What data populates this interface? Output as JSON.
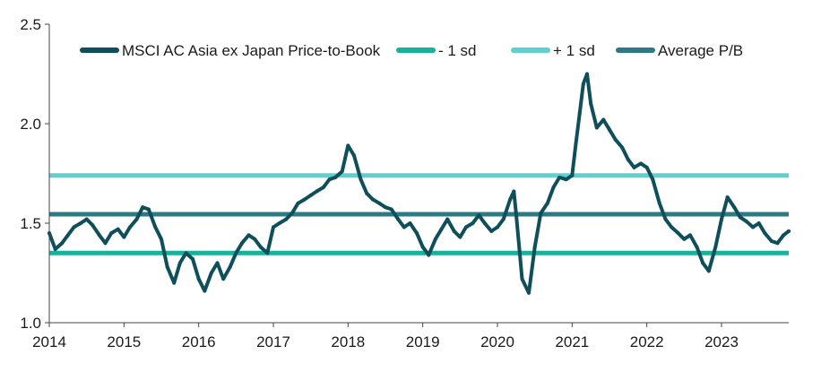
{
  "chart_data": {
    "type": "line",
    "title": "",
    "xlabel": "",
    "ylabel": "",
    "xlim": [
      2014.0,
      2023.9
    ],
    "ylim": [
      1.0,
      2.5
    ],
    "x_ticks": [
      2014,
      2015,
      2016,
      2017,
      2018,
      2019,
      2020,
      2021,
      2022,
      2023
    ],
    "x_tick_labels": [
      "2014",
      "2015",
      "2016",
      "2017",
      "2018",
      "2019",
      "2020",
      "2021",
      "2022",
      "2023"
    ],
    "y_ticks": [
      1.0,
      1.5,
      2.0,
      2.5
    ],
    "y_tick_labels": [
      "1.0",
      "1.5",
      "2.0",
      "2.5"
    ],
    "grid": false,
    "legend_position": "top",
    "series": [
      {
        "name": "MSCI AC Asia ex Japan Price-to-Book",
        "color": "#0e4f5a",
        "x": [
          2014.0,
          2014.08,
          2014.17,
          2014.25,
          2014.33,
          2014.42,
          2014.5,
          2014.58,
          2014.67,
          2014.75,
          2014.83,
          2014.92,
          2015.0,
          2015.08,
          2015.17,
          2015.25,
          2015.33,
          2015.42,
          2015.5,
          2015.58,
          2015.67,
          2015.75,
          2015.83,
          2015.92,
          2016.0,
          2016.08,
          2016.17,
          2016.25,
          2016.33,
          2016.42,
          2016.5,
          2016.58,
          2016.67,
          2016.75,
          2016.83,
          2016.92,
          2017.0,
          2017.08,
          2017.17,
          2017.25,
          2017.33,
          2017.42,
          2017.5,
          2017.58,
          2017.67,
          2017.75,
          2017.83,
          2017.92,
          2018.0,
          2018.08,
          2018.17,
          2018.25,
          2018.33,
          2018.42,
          2018.5,
          2018.58,
          2018.67,
          2018.75,
          2018.83,
          2018.92,
          2019.0,
          2019.08,
          2019.17,
          2019.25,
          2019.33,
          2019.42,
          2019.5,
          2019.58,
          2019.67,
          2019.75,
          2019.83,
          2019.92,
          2020.0,
          2020.08,
          2020.17,
          2020.22,
          2020.25,
          2020.33,
          2020.42,
          2020.5,
          2020.58,
          2020.67,
          2020.75,
          2020.83,
          2020.92,
          2021.0,
          2021.05,
          2021.1,
          2021.15,
          2021.2,
          2021.25,
          2021.33,
          2021.42,
          2021.5,
          2021.58,
          2021.67,
          2021.75,
          2021.83,
          2021.92,
          2022.0,
          2022.08,
          2022.17,
          2022.25,
          2022.33,
          2022.42,
          2022.5,
          2022.58,
          2022.67,
          2022.75,
          2022.83,
          2022.92,
          2023.0,
          2023.08,
          2023.17,
          2023.25,
          2023.33,
          2023.42,
          2023.5,
          2023.58,
          2023.67,
          2023.75,
          2023.83,
          2023.9
        ],
        "values": [
          1.45,
          1.37,
          1.4,
          1.44,
          1.48,
          1.5,
          1.52,
          1.49,
          1.44,
          1.4,
          1.45,
          1.47,
          1.43,
          1.48,
          1.52,
          1.58,
          1.57,
          1.48,
          1.42,
          1.28,
          1.2,
          1.3,
          1.35,
          1.32,
          1.22,
          1.16,
          1.25,
          1.3,
          1.22,
          1.28,
          1.35,
          1.4,
          1.44,
          1.42,
          1.38,
          1.35,
          1.48,
          1.5,
          1.52,
          1.55,
          1.6,
          1.62,
          1.64,
          1.66,
          1.68,
          1.72,
          1.73,
          1.76,
          1.89,
          1.84,
          1.72,
          1.65,
          1.62,
          1.6,
          1.58,
          1.57,
          1.52,
          1.48,
          1.5,
          1.45,
          1.38,
          1.34,
          1.42,
          1.47,
          1.52,
          1.46,
          1.43,
          1.48,
          1.5,
          1.54,
          1.5,
          1.46,
          1.48,
          1.52,
          1.62,
          1.66,
          1.55,
          1.22,
          1.15,
          1.38,
          1.55,
          1.6,
          1.68,
          1.73,
          1.72,
          1.74,
          1.9,
          2.05,
          2.2,
          2.25,
          2.1,
          1.98,
          2.02,
          1.97,
          1.92,
          1.88,
          1.82,
          1.78,
          1.8,
          1.78,
          1.72,
          1.6,
          1.52,
          1.48,
          1.45,
          1.42,
          1.44,
          1.38,
          1.3,
          1.26,
          1.38,
          1.52,
          1.63,
          1.58,
          1.53,
          1.51,
          1.48,
          1.5,
          1.45,
          1.41,
          1.4,
          1.44,
          1.46
        ]
      },
      {
        "name": "- 1 sd",
        "color": "#17b29a",
        "constant": 1.35
      },
      {
        "name": "+ 1 sd",
        "color": "#5fcfcf",
        "constant": 1.74
      },
      {
        "name": "Average P/B",
        "color": "#2d7a86",
        "constant": 1.545
      }
    ]
  }
}
